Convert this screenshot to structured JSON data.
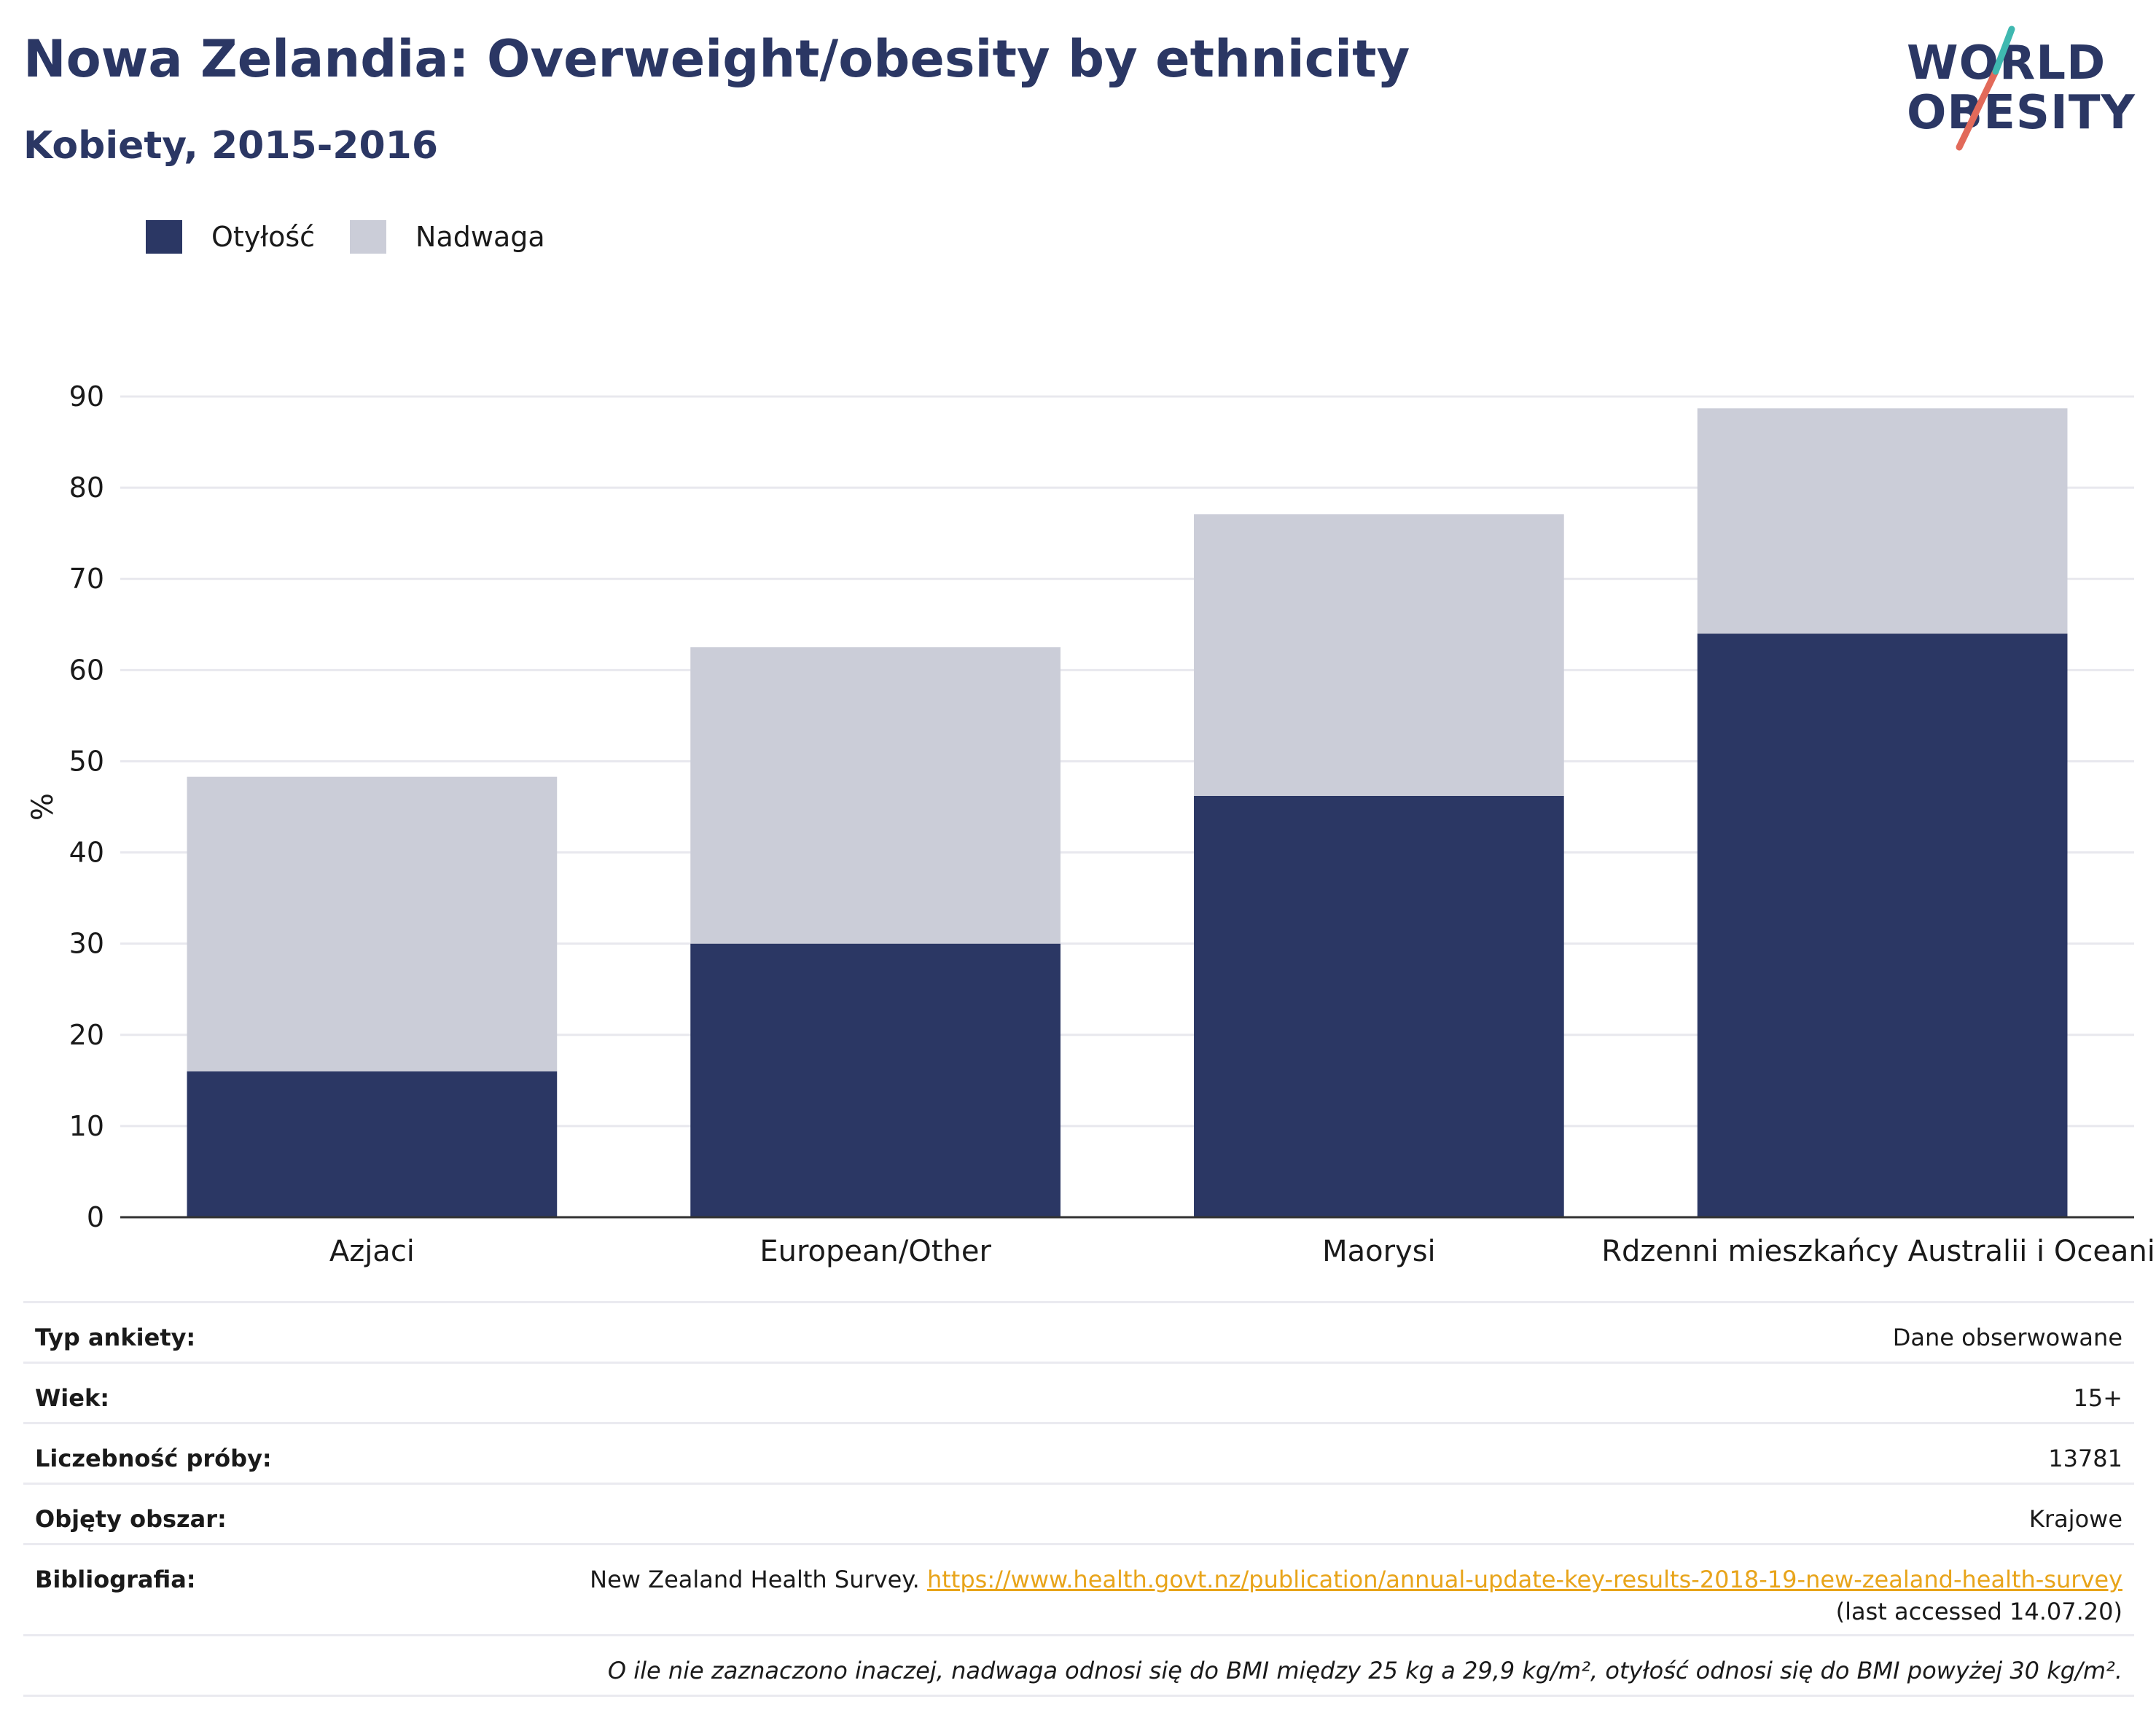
{
  "header": {
    "title": "Nowa Zelandia: Overweight/obesity by ethnicity",
    "subtitle": "Kobiety, 2015-2016"
  },
  "logo": {
    "line1": "WORLD",
    "line2": "OBESITY"
  },
  "colors": {
    "obesity": "#2b3764",
    "overweight": "#cbcdd8",
    "title": "#2b3764",
    "link": "#e8a41a"
  },
  "chart_data": {
    "type": "bar",
    "stacked": true,
    "categories": [
      "Azjaci",
      "European/Other",
      "Maorysi",
      "Rdzenni mieszkańcy Australii i Oceanii"
    ],
    "series": [
      {
        "name": "Otyłość",
        "values": [
          16.0,
          30.0,
          46.2,
          64.0
        ]
      },
      {
        "name": "Nadwaga",
        "values": [
          32.3,
          32.5,
          30.9,
          24.7
        ]
      }
    ],
    "ylabel": "%",
    "ylim": [
      0,
      90
    ],
    "yticks": [
      0,
      10,
      20,
      30,
      40,
      50,
      60,
      70,
      80,
      90
    ],
    "grid": true,
    "legend_position": "top-left"
  },
  "info": {
    "survey_type": {
      "label": "Typ ankiety:",
      "value": "Dane obserwowane"
    },
    "age": {
      "label": "Wiek:",
      "value": "15+"
    },
    "sample_size": {
      "label": "Liczebność próby:",
      "value": "13781"
    },
    "coverage": {
      "label": "Objęty obszar:",
      "value": "Krajowe"
    },
    "bibliography": {
      "label": "Bibliografia:",
      "source": "New Zealand Health Survey.",
      "url": "https://www.health.govt.nz/publication/annual-update-key-results-2018-19-new-zealand-health-survey",
      "accessed": "(last accessed 14.07.20)"
    },
    "note": "O ile nie zaznaczono inaczej, nadwaga odnosi się do BMI między 25 kg a 29,9 kg/m², otyłość odnosi się do BMI powyżej 30 kg/m²."
  }
}
